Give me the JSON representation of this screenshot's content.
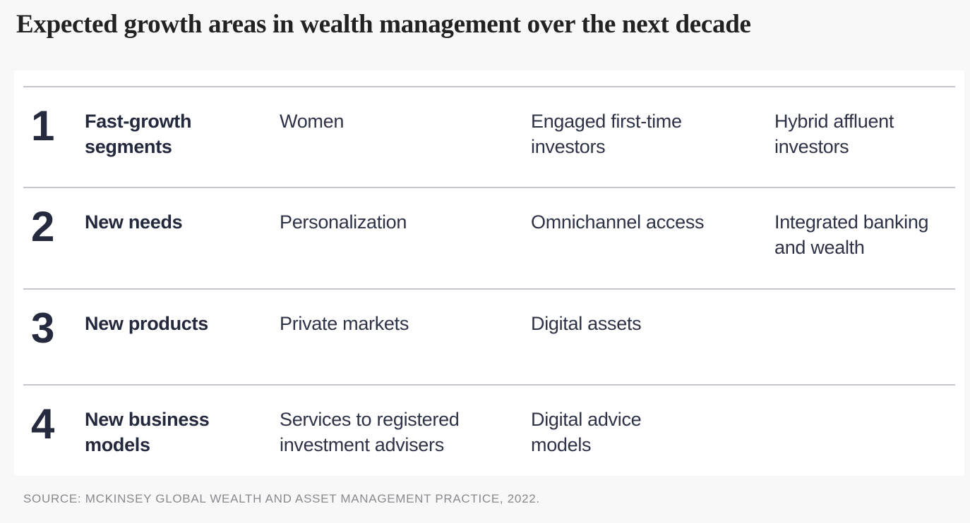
{
  "page": {
    "title": "Expected growth areas in wealth management over the next decade",
    "source": "SOURCE: MCKINSEY GLOBAL WEALTH AND ASSET MANAGEMENT PRACTICE, 2022."
  },
  "colors": {
    "page_bg": "#f8f8f9",
    "card_bg": "#ffffff",
    "title_text": "#222222",
    "heading_text": "#24283c",
    "body_text": "#2e3246",
    "divider": "#c5c5d0",
    "source_text": "#8a8a8e"
  },
  "chart_data": {
    "type": "table",
    "title": "Expected growth areas in wealth management over the next decade",
    "columns": [
      "rank",
      "category",
      "item-1",
      "item-2",
      "item-3"
    ],
    "rows": [
      {
        "number": "1",
        "category": "Fast-growth\nsegments",
        "items": [
          "Women",
          "Engaged first-time\ninvestors",
          "Hybrid affluent\ninvestors"
        ]
      },
      {
        "number": "2",
        "category": "New needs",
        "items": [
          "Personalization",
          "Omnichannel access",
          "Integrated banking\nand wealth"
        ]
      },
      {
        "number": "3",
        "category": "New products",
        "items": [
          "Private markets",
          "Digital assets",
          ""
        ]
      },
      {
        "number": "4",
        "category": "New business\nmodels",
        "items": [
          "Services to registered\ninvestment advisers",
          "Digital advice\nmodels",
          ""
        ]
      }
    ],
    "source": "SOURCE: MCKINSEY GLOBAL WEALTH AND ASSET MANAGEMENT PRACTICE, 2022.",
    "layout_hints": {
      "grid": "off",
      "legend": "none",
      "row_dividers": true
    }
  }
}
